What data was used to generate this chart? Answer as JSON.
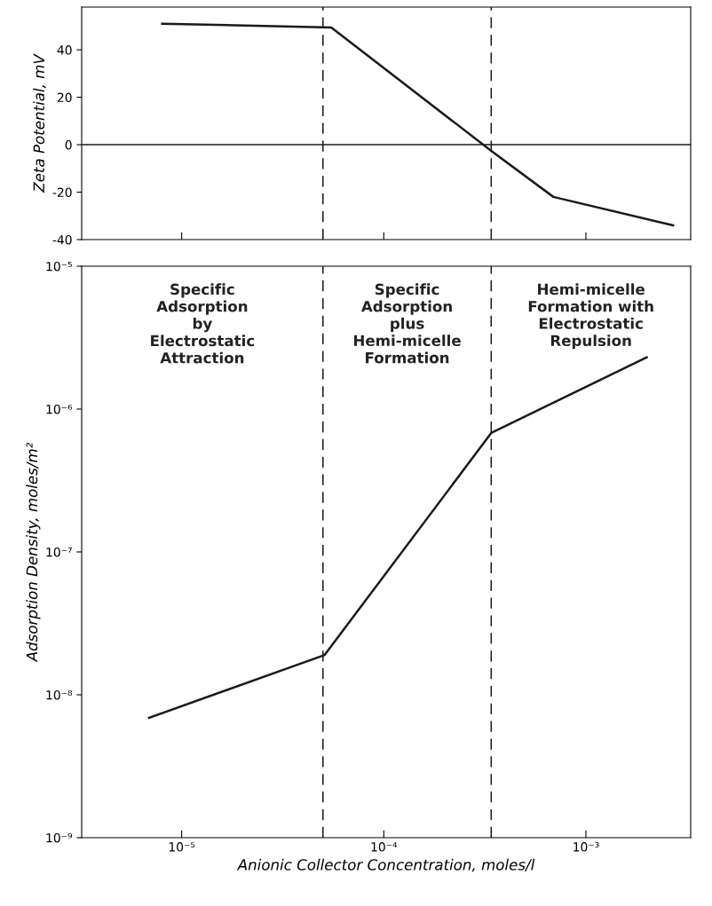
{
  "chart_data": [
    {
      "type": "line",
      "ylabel": "Zeta Potential, mV",
      "xlim": [
        3.2e-06,
        0.0033
      ],
      "ylim": [
        -40,
        58
      ],
      "log": "x",
      "xticks": [
        {
          "value": 1e-05,
          "label": null
        },
        {
          "value": 0.0001,
          "label": null
        },
        {
          "value": 0.001,
          "label": null
        }
      ],
      "yticks": [
        -40,
        -20,
        0,
        20,
        40
      ],
      "tick_labels": "y",
      "grid": false,
      "legend": false,
      "x": [
        8e-06,
        5.5e-05,
        0.00034,
        0.00069,
        0.0027
      ],
      "series": [
        {
          "color": "#1a1a1a",
          "values": [
            51,
            49.4,
            -2.6,
            -22,
            -34
          ]
        }
      ],
      "ref_lines": [
        {
          "axis": "y",
          "value": 0,
          "color": "#1a1a1a",
          "line_style": "solid"
        },
        {
          "axis": "x",
          "value": 5e-05,
          "color": "#1a1a1a",
          "line_style": "dashed"
        },
        {
          "axis": "x",
          "value": 0.00034,
          "color": "#1a1a1a",
          "line_style": "dashed"
        }
      ]
    },
    {
      "type": "line",
      "xlabel": "Anionic Collector Concentration, moles/l",
      "ylabel": "Adsorption Density, moles/m²",
      "xlim": [
        3.2e-06,
        0.0033
      ],
      "ylim": [
        1e-09,
        1e-05
      ],
      "log": "xy",
      "xticks": [
        {
          "value": 1e-05,
          "label": "10⁻⁵"
        },
        {
          "value": 0.0001,
          "label": "10⁻⁴"
        },
        {
          "value": 0.001,
          "label": "10⁻³"
        }
      ],
      "yticks": [
        {
          "value": 1e-09,
          "label": "10⁻⁹"
        },
        {
          "value": 1e-08,
          "label": "10⁻⁸"
        },
        {
          "value": 1e-07,
          "label": "10⁻⁷"
        },
        {
          "value": 1e-06,
          "label": "10⁻⁶"
        },
        {
          "value": 1e-05,
          "label": "10⁻⁵"
        }
      ],
      "grid": false,
      "legend": false,
      "x": [
        6.9e-06,
        5.1e-05,
        0.00034,
        0.002
      ],
      "series": [
        {
          "color": "#1a1a1a",
          "values": [
            6.9e-09,
            1.9e-08,
            6.8e-07,
            2.3e-06
          ]
        }
      ],
      "ref_lines": [
        {
          "axis": "x",
          "value": 5e-05,
          "color": "#1a1a1a",
          "line_style": "dashed"
        },
        {
          "axis": "x",
          "value": 0.00034,
          "color": "#1a1a1a",
          "line_style": "dashed"
        }
      ],
      "annotations": [
        "Specific\nAdsorption\nby\nElectrostatic\nAttraction",
        "Specific\nAdsorption\nplus\nHemi-micelle\nFormation",
        "Hemi-micelle\nFormation with\nElectrostatic\nRepulsion"
      ]
    }
  ]
}
